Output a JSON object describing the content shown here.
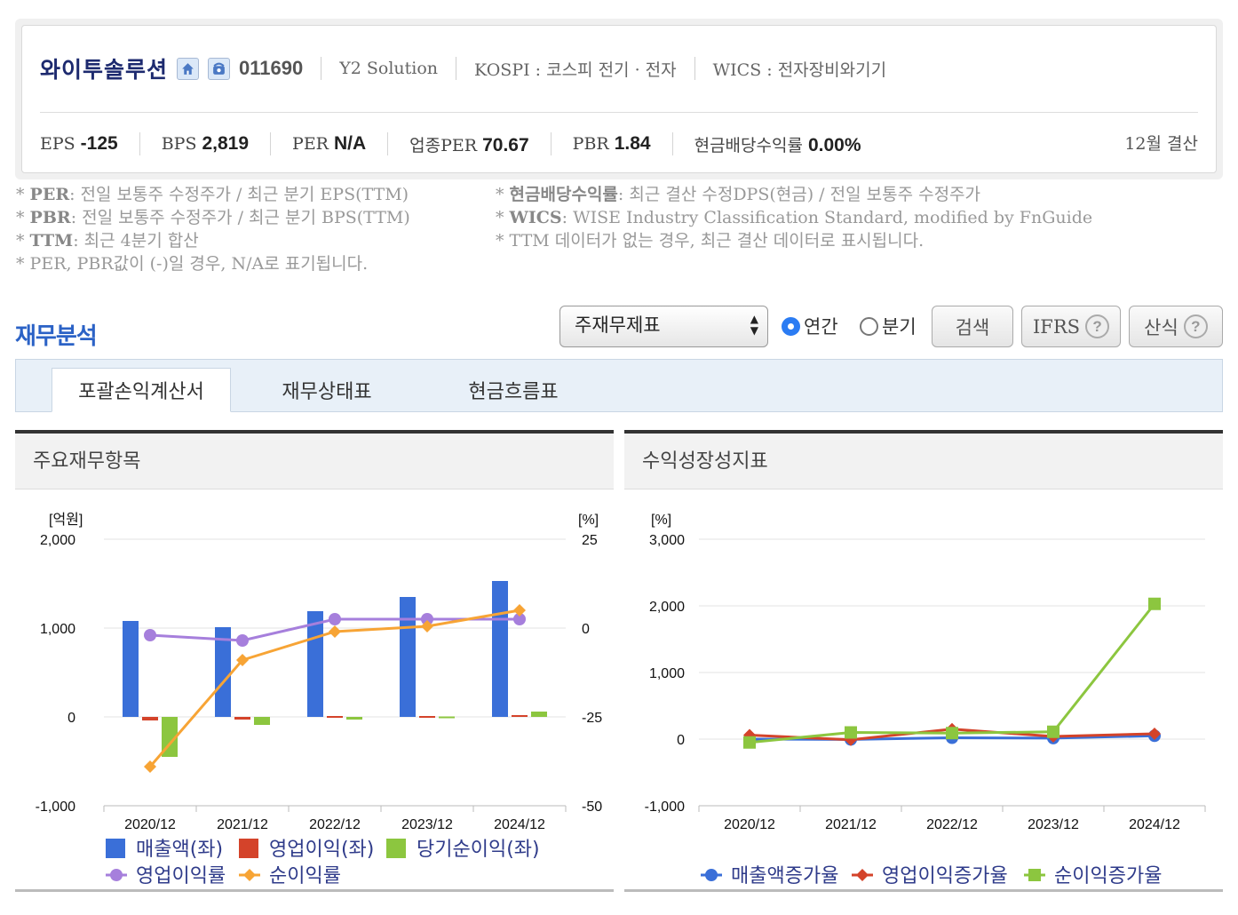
{
  "company": {
    "name": "와이투솔루션",
    "code": "011690",
    "english_name": "Y2 Solution",
    "market": "KOSPI : 코스피 전기 · 전자",
    "wics": "WICS : 전자장비와기기",
    "icons": [
      "home-icon",
      "phone-icon"
    ]
  },
  "ratios": [
    {
      "label": "EPS",
      "value": "-125"
    },
    {
      "label": "BPS",
      "value": "2,819"
    },
    {
      "label": "PER",
      "value": "N/A"
    },
    {
      "label": "업종PER",
      "value": "70.67"
    },
    {
      "label": "PBR",
      "value": "1.84"
    },
    {
      "label": "현금배당수익률",
      "value": "0.00%"
    }
  ],
  "settlement": "12월 결산",
  "notes_left": [
    {
      "term": "PER",
      "text": ": 전일 보통주 수정주가 / 최근 분기 EPS(TTM)"
    },
    {
      "term": "PBR",
      "text": ": 전일 보통주 수정주가 / 최근 분기 BPS(TTM)"
    },
    {
      "term": "TTM",
      "text": ": 최근 4분기 합산"
    },
    {
      "term": "",
      "text": "PER, PBR값이 (-)일 경우, N/A로 표기됩니다."
    }
  ],
  "notes_right": [
    {
      "term": "현금배당수익률",
      "text": ": 최근 결산 수정DPS(현금) / 전일 보통주 수정주가"
    },
    {
      "term": "WICS",
      "text": ": WISE Industry Classification Standard, modified by FnGuide"
    },
    {
      "term": "",
      "text": "TTM 데이터가 없는 경우, 최근 결산 데이터로 표시됩니다."
    }
  ],
  "toolbar": {
    "section_title": "재무분석",
    "select_value": "주재무제표",
    "radio_annual": "연간",
    "radio_quarter": "분기",
    "search_label": "검색",
    "ifrs_label": "IFRS",
    "formula_label": "산식"
  },
  "tabs": [
    "포괄손익계산서",
    "재무상태표",
    "현금흐름표"
  ],
  "colors": {
    "revenue": "#3a6fd8",
    "op_income": "#d4432a",
    "net_income": "#8cc63f",
    "op_margin": "#a67fdc",
    "net_margin": "#f7a435",
    "title_blue": "#2b62c6"
  },
  "chart_data": [
    {
      "type": "bar",
      "title": "주요재무항목",
      "categories": [
        "2020/12",
        "2021/12",
        "2022/12",
        "2023/12",
        "2024/12"
      ],
      "left_unit": "[억원]",
      "right_unit": "[%]",
      "left_ticks": [
        "2,000",
        "1,000",
        "0",
        "-1,000"
      ],
      "right_ticks": [
        "25",
        "0",
        "-25",
        "-50"
      ],
      "ylim_left": [
        -1000,
        2000
      ],
      "ylim_right": [
        -50,
        25
      ],
      "series": [
        {
          "name": "매출액(좌)",
          "kind": "bar",
          "axis": "left",
          "values": [
            1080,
            1010,
            1190,
            1350,
            1530
          ]
        },
        {
          "name": "영업이익(좌)",
          "kind": "bar",
          "axis": "left",
          "values": [
            -40,
            -30,
            10,
            10,
            20
          ]
        },
        {
          "name": "당기순이익(좌)",
          "kind": "bar",
          "axis": "left",
          "values": [
            -450,
            -90,
            -30,
            5,
            60
          ]
        },
        {
          "name": "영업이익률",
          "kind": "line",
          "axis": "right",
          "values": [
            -2,
            -3.5,
            2.5,
            2.5,
            2.5
          ]
        },
        {
          "name": "순이익률",
          "kind": "line",
          "axis": "right",
          "values": [
            -39,
            -9,
            -1,
            0.5,
            5
          ]
        }
      ],
      "legend": "bottom"
    },
    {
      "type": "line",
      "title": "수익성장성지표",
      "categories": [
        "2020/12",
        "2021/12",
        "2022/12",
        "2023/12",
        "2024/12"
      ],
      "unit": "[%]",
      "ticks": [
        "3,000",
        "2,000",
        "1,000",
        "0",
        "-1,000"
      ],
      "ylim": [
        -1000,
        3000
      ],
      "series": [
        {
          "name": "매출액증가율",
          "values": [
            0,
            -5,
            20,
            15,
            50
          ]
        },
        {
          "name": "영업이익증가율",
          "values": [
            60,
            -10,
            150,
            40,
            80
          ]
        },
        {
          "name": "순이익증가율",
          "values": [
            -50,
            100,
            90,
            110,
            2030
          ]
        }
      ],
      "legend": "bottom"
    }
  ]
}
